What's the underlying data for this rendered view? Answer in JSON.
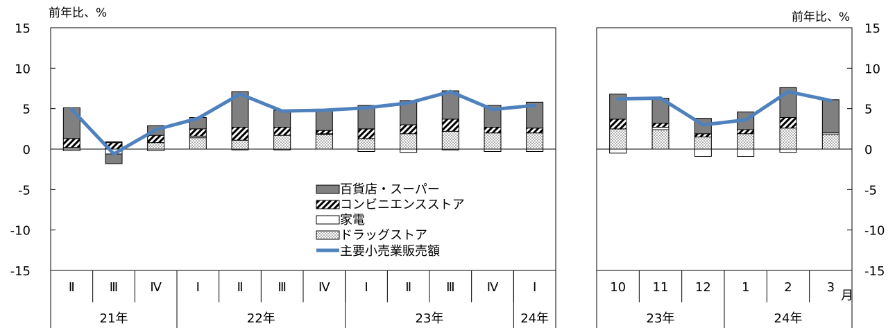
{
  "chart_data": [
    {
      "type": "bar",
      "stacked": true,
      "unit_label": "前年比、%",
      "ylim": [
        -15,
        15
      ],
      "yticks": [
        15,
        10,
        5,
        0,
        -5,
        -10,
        -15
      ],
      "categories": [
        "Ⅱ",
        "Ⅲ",
        "Ⅳ",
        "Ⅰ",
        "Ⅱ",
        "Ⅲ",
        "Ⅳ",
        "Ⅰ",
        "Ⅱ",
        "Ⅲ",
        "Ⅳ",
        "Ⅰ"
      ],
      "year_groups": [
        {
          "label": "21年",
          "count": 3
        },
        {
          "label": "22年",
          "count": 4
        },
        {
          "label": "23年",
          "count": 4
        },
        {
          "label": "24年",
          "count": 1
        }
      ],
      "series": [
        {
          "name": "ドラッグストア",
          "type": "bar",
          "values": [
            0.2,
            0.0,
            0.8,
            1.4,
            1.1,
            1.7,
            1.8,
            1.3,
            1.9,
            2.2,
            2.0,
            2.0
          ]
        },
        {
          "name": "家電",
          "type": "bar",
          "values": [
            -0.2,
            -0.6,
            -0.2,
            0.2,
            -0.1,
            -0.1,
            0.1,
            -0.3,
            -0.4,
            -0.1,
            -0.3,
            -0.3
          ]
        },
        {
          "name": "コンビニエンスストア",
          "type": "bar",
          "values": [
            1.1,
            0.8,
            0.9,
            0.9,
            1.6,
            1.0,
            0.4,
            1.2,
            1.1,
            1.5,
            0.7,
            0.6
          ]
        },
        {
          "name": "百貨店・スーパー",
          "type": "bar",
          "values": [
            3.8,
            0.1,
            1.2,
            1.4,
            4.4,
            2.1,
            2.5,
            2.9,
            3.0,
            3.5,
            2.7,
            3.2
          ]
        },
        {
          "name": "百貨店・スーパー",
          "type": "bar_negative",
          "values": [
            0,
            -1.2,
            0,
            0,
            0,
            0,
            0,
            0,
            0,
            0,
            0,
            0
          ]
        },
        {
          "name": "主要小売業販売額",
          "type": "line",
          "values": [
            4.9,
            -0.6,
            2.4,
            3.8,
            6.8,
            4.7,
            4.8,
            5.1,
            5.7,
            7.1,
            4.9,
            5.4
          ]
        }
      ]
    },
    {
      "type": "bar",
      "stacked": true,
      "unit_label": "前年比、%",
      "ylim": [
        -15,
        15
      ],
      "yticks": [
        15,
        10,
        5,
        0,
        -5,
        -10,
        -15
      ],
      "categories": [
        "10",
        "11",
        "12",
        "1",
        "2",
        "3"
      ],
      "month_suffix": "月",
      "year_groups": [
        {
          "label": "23年",
          "count": 3
        },
        {
          "label": "24年",
          "count": 3
        }
      ],
      "series": [
        {
          "name": "ドラッグストア",
          "type": "bar",
          "values": [
            2.5,
            2.4,
            1.5,
            1.9,
            2.6,
            1.8
          ]
        },
        {
          "name": "家電",
          "type": "bar",
          "values": [
            -0.5,
            0.3,
            -0.9,
            -0.9,
            -0.4,
            0.2
          ]
        },
        {
          "name": "コンビニエンスストア",
          "type": "bar",
          "values": [
            1.2,
            0.5,
            0.4,
            0.5,
            1.3,
            0.0
          ]
        },
        {
          "name": "百貨店・スーパー",
          "type": "bar",
          "values": [
            3.1,
            3.1,
            1.9,
            2.2,
            3.7,
            4.1
          ]
        },
        {
          "name": "主要小売業販売額",
          "type": "line",
          "values": [
            6.2,
            6.3,
            3.0,
            3.6,
            7.1,
            6.0
          ]
        }
      ]
    }
  ],
  "legend": [
    {
      "key": "dept",
      "label": "百貨店・スーパー"
    },
    {
      "key": "conv",
      "label": "コンビニエンスストア"
    },
    {
      "key": "appl",
      "label": "家電"
    },
    {
      "key": "drug",
      "label": "ドラッグストア"
    },
    {
      "key": "total",
      "label": "主要小売業販売額"
    }
  ]
}
